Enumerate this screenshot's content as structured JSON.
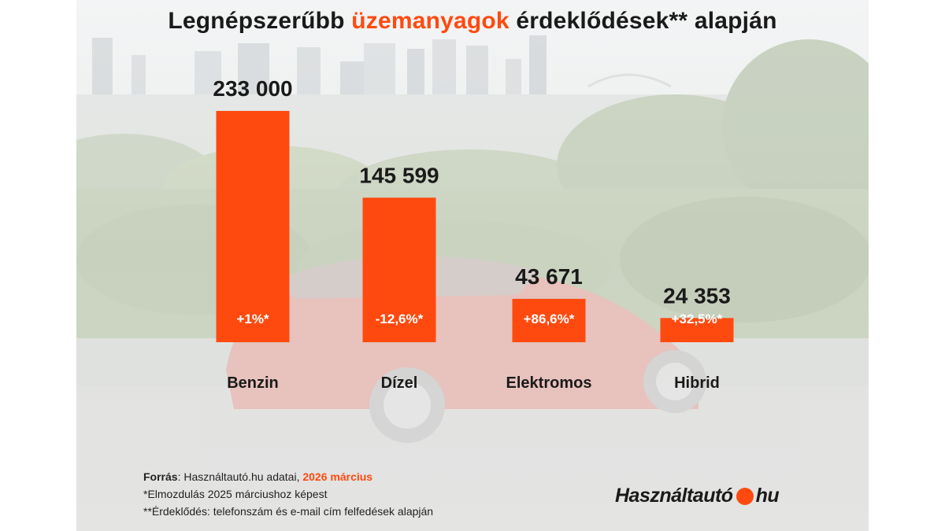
{
  "title": {
    "part1": "Legnépszerűbb",
    "highlight": "üzemanyagok",
    "part2": "érdeklődések** alapján"
  },
  "colors": {
    "accent": "#ff4a0f",
    "text": "#1a1a1a"
  },
  "chart_data": {
    "type": "bar",
    "categories": [
      "Benzin",
      "Dízel",
      "Elektromos",
      "Hibrid"
    ],
    "values": [
      233000,
      145599,
      43671,
      24353
    ],
    "value_labels": [
      "233 000",
      "145 599",
      "43 671",
      "24 353"
    ],
    "change_labels": [
      "+1%*",
      "-12,6%*",
      "+86,6%*",
      "+32,5%*"
    ],
    "bar_color": "#ff4a0f",
    "grid": false,
    "legend": "none",
    "xlabel": "",
    "ylabel": ""
  },
  "footer": {
    "source_label": "Forrás",
    "source_text": ": Használtautó.hu adatai, ",
    "source_date": "2026 március",
    "note1": "*Elmozdulás 2025 márciushoz képest",
    "note2": "**Érdeklődés: telefonszám és e-mail cím felfedések alapján"
  },
  "logo": {
    "left": "Használtautó",
    "right": "hu"
  }
}
